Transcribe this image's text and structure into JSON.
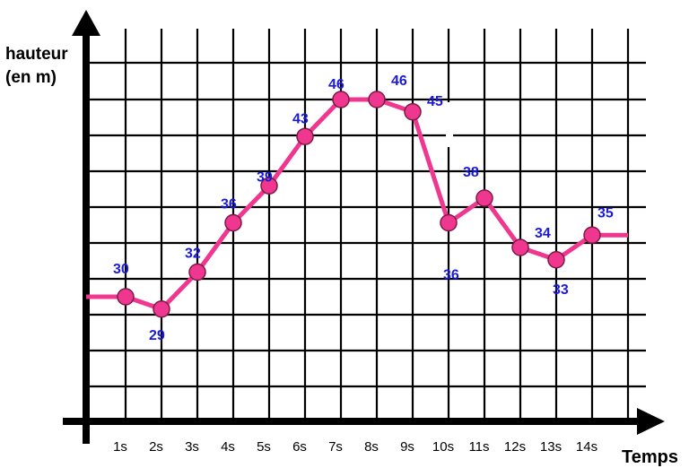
{
  "colors": {
    "line": "#f0378f",
    "marker_outline": "#7a1a45",
    "data_label": "#1a1adb",
    "grid": "#000000"
  },
  "chart_data": {
    "type": "line",
    "title": "",
    "ylabel_lines": [
      "hauteur",
      "(en m)"
    ],
    "xlabel": "Temps",
    "x_ticks": [
      "1s",
      "2s",
      "3s",
      "4s",
      "5s",
      "6s",
      "7s",
      "8s",
      "9s",
      "10s",
      "11s",
      "12s",
      "13s",
      "14s"
    ],
    "x": [
      1,
      2,
      3,
      4,
      5,
      6,
      7,
      8,
      9,
      10,
      11,
      12,
      13,
      14
    ],
    "y": [
      30,
      29,
      32,
      36,
      39,
      43,
      46,
      46,
      45,
      36,
      38,
      34,
      33,
      35
    ],
    "value_labels": [
      "30",
      "29",
      "32",
      "36",
      "39",
      "43",
      "46",
      "46",
      "45",
      "36",
      "38",
      "34",
      "33",
      "35"
    ],
    "line_start_y": 30,
    "line_end_y": 35,
    "grid": true,
    "legend": "none"
  }
}
